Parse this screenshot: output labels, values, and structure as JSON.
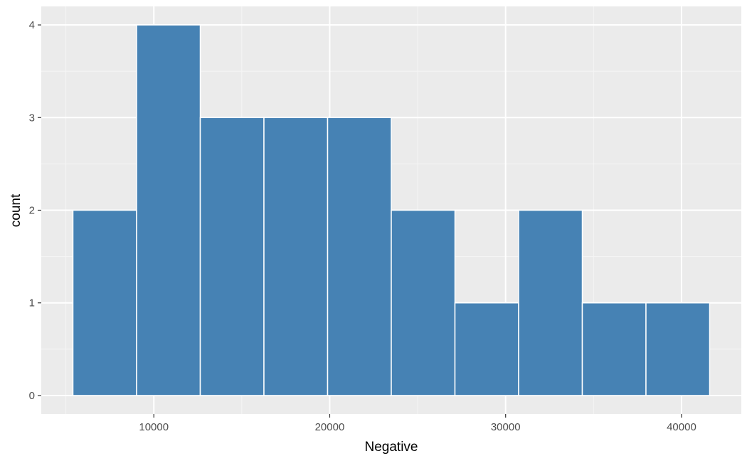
{
  "chart_data": {
    "type": "bar",
    "xlabel": "Negative",
    "ylabel": "count",
    "bins": [
      {
        "x0": 5400,
        "x1": 9020,
        "count": 2
      },
      {
        "x0": 9020,
        "x1": 12640,
        "count": 4
      },
      {
        "x0": 12640,
        "x1": 16260,
        "count": 3
      },
      {
        "x0": 16260,
        "x1": 19880,
        "count": 3
      },
      {
        "x0": 19880,
        "x1": 23500,
        "count": 3
      },
      {
        "x0": 23500,
        "x1": 27120,
        "count": 2
      },
      {
        "x0": 27120,
        "x1": 30740,
        "count": 1
      },
      {
        "x0": 30740,
        "x1": 34360,
        "count": 2
      },
      {
        "x0": 34360,
        "x1": 37980,
        "count": 1
      },
      {
        "x0": 37980,
        "x1": 41600,
        "count": 1
      }
    ],
    "xlim": [
      3600,
      43400
    ],
    "ylim": [
      -0.2,
      4.2
    ],
    "x_ticks": [
      10000,
      20000,
      30000,
      40000
    ],
    "y_ticks": [
      0,
      1,
      2,
      3,
      4
    ],
    "grid": true,
    "colors": {
      "bar_fill": "#4682B4",
      "bar_outline": "#ffffff",
      "panel_background": "#EBEBEB",
      "grid_major": "#ffffff",
      "grid_minor": "#f5f5f5"
    }
  }
}
